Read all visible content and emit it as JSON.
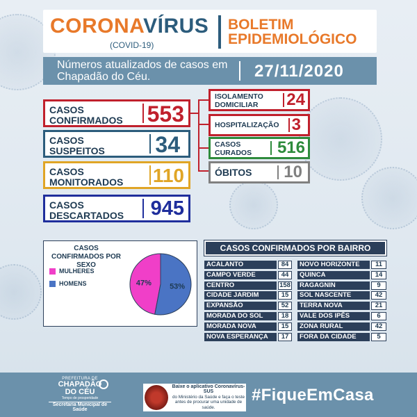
{
  "header": {
    "title_orange": "CORONA",
    "title_blue": "VÍRUS",
    "subtitle": "(COVID-19)",
    "bulletin_line1": "BOLETIM",
    "bulletin_line2": "EPIDEMIOLÓGICO"
  },
  "subheader": {
    "text": "Números atualizados de casos em Chapadão do Céu.",
    "date": "27/11/2020"
  },
  "left_stats": [
    {
      "line1": "CASOS",
      "line2": "CONFIRMADOS",
      "value": "553",
      "color": "#c0202c"
    },
    {
      "line1": "CASOS",
      "line2": "SUSPEITOS",
      "value": "34",
      "color": "#2c5c7c"
    },
    {
      "line1": "CASOS",
      "line2": "MONITORADOS",
      "value": "110",
      "color": "#e0a526"
    },
    {
      "line1": "CASOS",
      "line2": "DESCARTADOS",
      "value": "945",
      "color": "#1f2e9c"
    }
  ],
  "right_stats": [
    {
      "line1": "ISOLAMENTO",
      "line2": "DOMICILIAR",
      "value": "24",
      "color": "#c0202c"
    },
    {
      "line1": "HOSPITALIZAÇÃO",
      "line2": "",
      "value": "3",
      "color": "#c0202c"
    },
    {
      "line1": "CASOS",
      "line2": "CURADOS",
      "value": "516",
      "color": "#2e8b3c"
    },
    {
      "line1": "ÓBITOS",
      "line2": "",
      "value": "10",
      "color": "#808080"
    }
  ],
  "sex_panel": {
    "title": "CASOS CONFIRMADOS POR SEXO",
    "legend": [
      {
        "label": "MULHERES",
        "color": "#f03fc8"
      },
      {
        "label": "HOMENS",
        "color": "#4a74c4"
      }
    ]
  },
  "chart_data": {
    "type": "pie",
    "title": "CASOS CONFIRMADOS POR SEXO",
    "categories": [
      "MULHERES",
      "HOMENS"
    ],
    "values": [
      47,
      53
    ],
    "labels": [
      "47%",
      "53%"
    ],
    "colors": [
      "#f03fc8",
      "#4a74c4"
    ],
    "legend_position": "left"
  },
  "bairros": {
    "title": "CASOS CONFIRMADOS POR BAIRRO",
    "left": [
      {
        "name": "ACALANTO",
        "value": "84"
      },
      {
        "name": "CAMPO VERDE",
        "value": "44"
      },
      {
        "name": "CENTRO",
        "value": "158"
      },
      {
        "name": "CIDADE JARDIM",
        "value": "15"
      },
      {
        "name": "EXPANSÃO",
        "value": "52"
      },
      {
        "name": "MORADA DO SOL",
        "value": "18"
      },
      {
        "name": "MORADA NOVA",
        "value": "15"
      },
      {
        "name": "NOVA ESPERANÇA",
        "value": "17"
      }
    ],
    "right": [
      {
        "name": "NOVO HORIZONTE",
        "value": "11"
      },
      {
        "name": "QUINCA",
        "value": "14"
      },
      {
        "name": "RAGAGNIN",
        "value": "9"
      },
      {
        "name": "SOL NASCENTE",
        "value": "42"
      },
      {
        "name": "TERRA NOVA",
        "value": "21"
      },
      {
        "name": "VALE DOS IPÊS",
        "value": "6"
      },
      {
        "name": "ZONA RURAL",
        "value": "42"
      },
      {
        "name": "FORA DA CIDADE",
        "value": "5"
      }
    ]
  },
  "footer": {
    "logo_line1": "PREFEITURA DE",
    "logo_line2": "CHAPADÃO",
    "logo_line3": "DO CÉU",
    "logo_line4": "Tempo de prosperidade",
    "logo_line5": "Secretaria Municipal de",
    "logo_line6": "Saúde",
    "app_title": "Baixe o aplicativo Coronavírus-SUS",
    "app_text": "do Ministério da Saúde e faça o teste antes de procurar uma unidade de saúde.",
    "hashtag": "#FiqueEmCasa"
  }
}
